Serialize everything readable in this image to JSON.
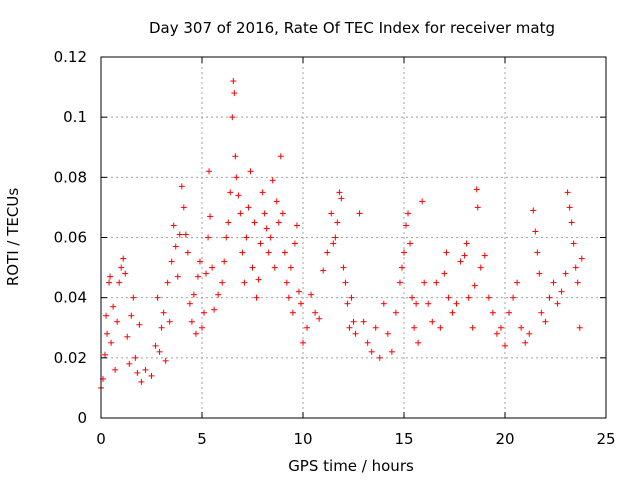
{
  "chart_data": {
    "type": "scatter",
    "title": "Day 307 of 2016, Rate Of TEC Index for receiver matg",
    "xlabel": "GPS time / hours",
    "ylabel": "ROTI / TECUs",
    "xlim": [
      0,
      25
    ],
    "ylim": [
      0,
      0.12
    ],
    "xticks": [
      0,
      5,
      10,
      15,
      20,
      25
    ],
    "xtick_labels": [
      "0",
      "5",
      "10",
      "15",
      "20",
      "25"
    ],
    "yticks": [
      0,
      0.02,
      0.04,
      0.06,
      0.08,
      0.1,
      0.12
    ],
    "ytick_labels": [
      "0",
      "0.02",
      "0.04",
      "0.06",
      "0.08",
      "0.1",
      "0.12"
    ],
    "grid": true,
    "marker": "plus",
    "color": "#ff0000",
    "series": [
      {
        "name": "ROTI",
        "points": [
          [
            0.0,
            0.01
          ],
          [
            0.1,
            0.013
          ],
          [
            0.2,
            0.021
          ],
          [
            0.25,
            0.034
          ],
          [
            0.3,
            0.028
          ],
          [
            0.4,
            0.045
          ],
          [
            0.45,
            0.047
          ],
          [
            0.5,
            0.025
          ],
          [
            0.6,
            0.037
          ],
          [
            0.7,
            0.016
          ],
          [
            0.8,
            0.032
          ],
          [
            0.9,
            0.045
          ],
          [
            1.0,
            0.05
          ],
          [
            1.1,
            0.053
          ],
          [
            1.2,
            0.048
          ],
          [
            1.3,
            0.027
          ],
          [
            1.4,
            0.018
          ],
          [
            1.5,
            0.034
          ],
          [
            1.6,
            0.04
          ],
          [
            1.7,
            0.02
          ],
          [
            1.8,
            0.015
          ],
          [
            1.9,
            0.031
          ],
          [
            2.0,
            0.012
          ],
          [
            2.2,
            0.016
          ],
          [
            2.5,
            0.014
          ],
          [
            2.7,
            0.024
          ],
          [
            2.8,
            0.04
          ],
          [
            2.9,
            0.022
          ],
          [
            3.0,
            0.03
          ],
          [
            3.1,
            0.035
          ],
          [
            3.2,
            0.019
          ],
          [
            3.3,
            0.045
          ],
          [
            3.4,
            0.032
          ],
          [
            3.5,
            0.052
          ],
          [
            3.6,
            0.064
          ],
          [
            3.7,
            0.057
          ],
          [
            3.8,
            0.047
          ],
          [
            3.9,
            0.061
          ],
          [
            4.0,
            0.077
          ],
          [
            4.1,
            0.07
          ],
          [
            4.2,
            0.061
          ],
          [
            4.3,
            0.055
          ],
          [
            4.4,
            0.038
          ],
          [
            4.5,
            0.032
          ],
          [
            4.6,
            0.041
          ],
          [
            4.7,
            0.028
          ],
          [
            4.8,
            0.047
          ],
          [
            4.9,
            0.052
          ],
          [
            5.0,
            0.03
          ],
          [
            5.1,
            0.035
          ],
          [
            5.2,
            0.048
          ],
          [
            5.3,
            0.06
          ],
          [
            5.35,
            0.082
          ],
          [
            5.4,
            0.067
          ],
          [
            5.5,
            0.05
          ],
          [
            5.6,
            0.036
          ],
          [
            5.8,
            0.041
          ],
          [
            6.0,
            0.045
          ],
          [
            6.1,
            0.052
          ],
          [
            6.2,
            0.06
          ],
          [
            6.3,
            0.065
          ],
          [
            6.4,
            0.075
          ],
          [
            6.5,
            0.1
          ],
          [
            6.55,
            0.112
          ],
          [
            6.6,
            0.108
          ],
          [
            6.65,
            0.087
          ],
          [
            6.7,
            0.08
          ],
          [
            6.8,
            0.074
          ],
          [
            6.9,
            0.068
          ],
          [
            7.0,
            0.055
          ],
          [
            7.1,
            0.045
          ],
          [
            7.2,
            0.06
          ],
          [
            7.3,
            0.07
          ],
          [
            7.4,
            0.082
          ],
          [
            7.5,
            0.05
          ],
          [
            7.6,
            0.065
          ],
          [
            7.7,
            0.04
          ],
          [
            7.8,
            0.046
          ],
          [
            7.9,
            0.058
          ],
          [
            8.0,
            0.075
          ],
          [
            8.1,
            0.068
          ],
          [
            8.2,
            0.063
          ],
          [
            8.3,
            0.055
          ],
          [
            8.4,
            0.06
          ],
          [
            8.5,
            0.079
          ],
          [
            8.6,
            0.05
          ],
          [
            8.7,
            0.072
          ],
          [
            8.8,
            0.065
          ],
          [
            8.9,
            0.087
          ],
          [
            9.0,
            0.068
          ],
          [
            9.1,
            0.055
          ],
          [
            9.2,
            0.045
          ],
          [
            9.3,
            0.04
          ],
          [
            9.4,
            0.05
          ],
          [
            9.5,
            0.035
          ],
          [
            9.6,
            0.058
          ],
          [
            9.7,
            0.064
          ],
          [
            9.8,
            0.042
          ],
          [
            9.9,
            0.038
          ],
          [
            10.0,
            0.025
          ],
          [
            10.2,
            0.03
          ],
          [
            10.4,
            0.041
          ],
          [
            10.6,
            0.035
          ],
          [
            10.8,
            0.033
          ],
          [
            11.0,
            0.049
          ],
          [
            11.2,
            0.055
          ],
          [
            11.4,
            0.068
          ],
          [
            11.5,
            0.058
          ],
          [
            11.6,
            0.06
          ],
          [
            11.7,
            0.065
          ],
          [
            11.8,
            0.075
          ],
          [
            11.9,
            0.073
          ],
          [
            12.0,
            0.05
          ],
          [
            12.1,
            0.045
          ],
          [
            12.2,
            0.038
          ],
          [
            12.3,
            0.03
          ],
          [
            12.4,
            0.04
          ],
          [
            12.5,
            0.032
          ],
          [
            12.6,
            0.028
          ],
          [
            12.8,
            0.068
          ],
          [
            13.0,
            0.032
          ],
          [
            13.2,
            0.025
          ],
          [
            13.4,
            0.022
          ],
          [
            13.6,
            0.03
          ],
          [
            13.8,
            0.02
          ],
          [
            14.0,
            0.038
          ],
          [
            14.2,
            0.028
          ],
          [
            14.4,
            0.022
          ],
          [
            14.6,
            0.035
          ],
          [
            14.8,
            0.045
          ],
          [
            14.9,
            0.05
          ],
          [
            15.0,
            0.055
          ],
          [
            15.1,
            0.064
          ],
          [
            15.2,
            0.068
          ],
          [
            15.3,
            0.058
          ],
          [
            15.4,
            0.04
          ],
          [
            15.5,
            0.03
          ],
          [
            15.6,
            0.038
          ],
          [
            15.7,
            0.025
          ],
          [
            15.9,
            0.072
          ],
          [
            16.0,
            0.045
          ],
          [
            16.2,
            0.038
          ],
          [
            16.4,
            0.032
          ],
          [
            16.6,
            0.045
          ],
          [
            16.8,
            0.03
          ],
          [
            17.0,
            0.048
          ],
          [
            17.1,
            0.055
          ],
          [
            17.2,
            0.04
          ],
          [
            17.4,
            0.035
          ],
          [
            17.6,
            0.038
          ],
          [
            17.8,
            0.052
          ],
          [
            18.0,
            0.054
          ],
          [
            18.1,
            0.058
          ],
          [
            18.2,
            0.04
          ],
          [
            18.4,
            0.03
          ],
          [
            18.5,
            0.044
          ],
          [
            18.6,
            0.076
          ],
          [
            18.65,
            0.07
          ],
          [
            18.8,
            0.05
          ],
          [
            19.0,
            0.054
          ],
          [
            19.2,
            0.04
          ],
          [
            19.4,
            0.035
          ],
          [
            19.6,
            0.028
          ],
          [
            19.8,
            0.03
          ],
          [
            20.0,
            0.024
          ],
          [
            20.2,
            0.035
          ],
          [
            20.4,
            0.04
          ],
          [
            20.6,
            0.045
          ],
          [
            20.8,
            0.03
          ],
          [
            21.0,
            0.025
          ],
          [
            21.2,
            0.028
          ],
          [
            21.4,
            0.069
          ],
          [
            21.5,
            0.062
          ],
          [
            21.6,
            0.055
          ],
          [
            21.7,
            0.048
          ],
          [
            21.8,
            0.035
          ],
          [
            22.0,
            0.032
          ],
          [
            22.2,
            0.04
          ],
          [
            22.4,
            0.045
          ],
          [
            22.6,
            0.038
          ],
          [
            22.8,
            0.042
          ],
          [
            23.0,
            0.048
          ],
          [
            23.1,
            0.075
          ],
          [
            23.2,
            0.07
          ],
          [
            23.3,
            0.065
          ],
          [
            23.4,
            0.058
          ],
          [
            23.5,
            0.05
          ],
          [
            23.6,
            0.045
          ],
          [
            23.7,
            0.03
          ],
          [
            23.8,
            0.053
          ]
        ]
      }
    ]
  }
}
